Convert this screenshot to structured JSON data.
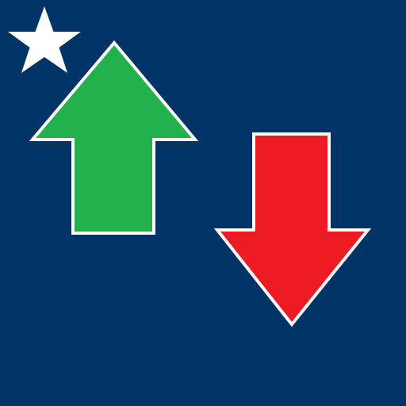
{
  "colors": {
    "background": "#003366",
    "up_arrow": "#22B14C",
    "down_arrow": "#ED1C24",
    "outline": "#FFFFFF",
    "star": "#FFFFFF"
  },
  "icons": {
    "star": "star-icon",
    "up": "arrow-up-icon",
    "down": "arrow-down-icon"
  }
}
